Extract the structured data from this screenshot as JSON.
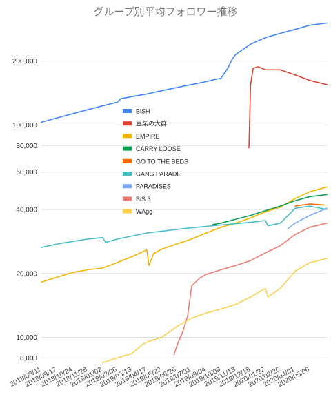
{
  "chart_data": {
    "type": "line",
    "title": "グループ別平均フォロワー推移",
    "xlabel": "",
    "ylabel": "",
    "y_scale": "log",
    "ylim": [
      7500,
      310000
    ],
    "y_ticks": [
      8000,
      10000,
      20000,
      40000,
      60000,
      80000,
      100000,
      200000
    ],
    "y_tick_labels": [
      "8,000",
      "10,000",
      "20,000",
      "40,000",
      "60,000",
      "80,000",
      "100,000",
      "200,000"
    ],
    "x_range": [
      "2018-08-11",
      "2020-06-15"
    ],
    "x_ticks": [
      "2018-08-11",
      "2018-09-17",
      "2018-10-24",
      "2018-11-28",
      "2019-01-02",
      "2019-02-06",
      "2019-03-13",
      "2019-04-17",
      "2019-05-22",
      "2019-06-26",
      "2019-07-31",
      "2019-09-04",
      "2019-10-09",
      "2019-11-13",
      "2019-12-18",
      "2020-01-22",
      "2020-02-26",
      "2020-04-01",
      "2020-05-06"
    ],
    "x_tick_labels": [
      "2018/08/11",
      "2018/09/17",
      "2018/10/24",
      "2018/11/28",
      "2019/01/02",
      "2019/02/06",
      "2019/03/13",
      "2019/04/17",
      "2019/05/22",
      "2019/06/26",
      "2019/07/31",
      "2019/09/04",
      "2019/10/09",
      "2019/11/13",
      "2019/12/18",
      "2020/01/22",
      "2020/02/26",
      "2020/04/01",
      "2020/05/06"
    ],
    "grid": true,
    "legend_position": "center",
    "series": [
      {
        "name": "BiSH",
        "color": "#4285f4",
        "points": [
          [
            "2018-08-11",
            103000
          ],
          [
            "2018-09-17",
            108000
          ],
          [
            "2018-10-24",
            113000
          ],
          [
            "2018-11-28",
            118000
          ],
          [
            "2019-01-02",
            123000
          ],
          [
            "2019-02-06",
            128000
          ],
          [
            "2019-02-15",
            133000
          ],
          [
            "2019-03-13",
            136000
          ],
          [
            "2019-04-17",
            140000
          ],
          [
            "2019-05-22",
            145000
          ],
          [
            "2019-06-26",
            150000
          ],
          [
            "2019-07-31",
            155000
          ],
          [
            "2019-09-04",
            160000
          ],
          [
            "2019-09-20",
            163000
          ],
          [
            "2019-10-09",
            166000
          ],
          [
            "2019-10-25",
            185000
          ],
          [
            "2019-11-05",
            205000
          ],
          [
            "2019-11-13",
            215000
          ],
          [
            "2019-12-18",
            240000
          ],
          [
            "2020-01-22",
            258000
          ],
          [
            "2020-02-26",
            270000
          ],
          [
            "2020-04-01",
            282000
          ],
          [
            "2020-05-06",
            295000
          ],
          [
            "2020-06-15",
            302000
          ]
        ]
      },
      {
        "name": "豆柴の大群",
        "color": "#db4437",
        "points": [
          [
            "2019-12-14",
            78000
          ],
          [
            "2019-12-18",
            155000
          ],
          [
            "2019-12-24",
            185000
          ],
          [
            "2020-01-05",
            188000
          ],
          [
            "2020-01-22",
            182000
          ],
          [
            "2020-02-26",
            182000
          ],
          [
            "2020-04-01",
            172000
          ],
          [
            "2020-05-06",
            162000
          ],
          [
            "2020-06-15",
            155000
          ]
        ]
      },
      {
        "name": "EMPIRE",
        "color": "#f4b400",
        "points": [
          [
            "2018-08-11",
            18200
          ],
          [
            "2018-09-17",
            19200
          ],
          [
            "2018-10-24",
            20200
          ],
          [
            "2018-11-28",
            20800
          ],
          [
            "2019-01-02",
            21200
          ],
          [
            "2019-02-06",
            22500
          ],
          [
            "2019-03-13",
            24000
          ],
          [
            "2019-04-17",
            25800
          ],
          [
            "2019-04-22",
            21800
          ],
          [
            "2019-05-03",
            24800
          ],
          [
            "2019-05-22",
            26000
          ],
          [
            "2019-06-26",
            27500
          ],
          [
            "2019-07-31",
            29000
          ],
          [
            "2019-09-04",
            31000
          ],
          [
            "2019-10-09",
            33000
          ],
          [
            "2019-11-13",
            34500
          ],
          [
            "2019-12-18",
            36500
          ],
          [
            "2020-01-22",
            39000
          ],
          [
            "2020-02-26",
            41000
          ],
          [
            "2020-04-01",
            45000
          ],
          [
            "2020-05-06",
            48500
          ],
          [
            "2020-06-15",
            51000
          ]
        ]
      },
      {
        "name": "CARRY LOOSE",
        "color": "#0f9d58",
        "points": [
          [
            "2019-09-20",
            34000
          ],
          [
            "2019-10-09",
            34500
          ],
          [
            "2019-11-13",
            36000
          ],
          [
            "2019-12-18",
            37500
          ],
          [
            "2020-01-22",
            39500
          ],
          [
            "2020-02-26",
            41500
          ],
          [
            "2020-04-01",
            44000
          ],
          [
            "2020-05-06",
            46000
          ],
          [
            "2020-06-15",
            47000
          ]
        ]
      },
      {
        "name": "GO TO THE BEDS",
        "color": "#ff6d00",
        "points": [
          [
            "2020-04-01",
            41500
          ],
          [
            "2020-05-06",
            42500
          ],
          [
            "2020-06-10",
            42000
          ]
        ]
      },
      {
        "name": "GANG PARADE",
        "color": "#46bdc6",
        "points": [
          [
            "2018-08-11",
            26500
          ],
          [
            "2018-09-17",
            27500
          ],
          [
            "2018-10-24",
            28300
          ],
          [
            "2018-11-28",
            29000
          ],
          [
            "2019-01-02",
            29500
          ],
          [
            "2019-01-10",
            28000
          ],
          [
            "2019-02-06",
            29000
          ],
          [
            "2019-03-13",
            30000
          ],
          [
            "2019-04-17",
            31000
          ],
          [
            "2019-05-22",
            31600
          ],
          [
            "2019-06-26",
            32200
          ],
          [
            "2019-07-31",
            32800
          ],
          [
            "2019-09-04",
            33300
          ],
          [
            "2019-10-09",
            33800
          ],
          [
            "2019-11-13",
            34300
          ],
          [
            "2019-12-18",
            34800
          ],
          [
            "2020-01-22",
            35500
          ],
          [
            "2020-01-28",
            33500
          ],
          [
            "2020-02-26",
            34500
          ],
          [
            "2020-04-01",
            40500
          ],
          [
            "2020-05-06",
            41500
          ],
          [
            "2020-06-15",
            40000
          ]
        ]
      },
      {
        "name": "PARADISES",
        "color": "#7baaf7",
        "points": [
          [
            "2020-03-15",
            32500
          ],
          [
            "2020-04-01",
            34500
          ],
          [
            "2020-05-06",
            37500
          ],
          [
            "2020-06-15",
            40500
          ]
        ]
      },
      {
        "name": "BiS 3",
        "color": "#f07b72",
        "points": [
          [
            "2019-06-20",
            8300
          ],
          [
            "2019-06-30",
            9500
          ],
          [
            "2019-07-10",
            10500
          ],
          [
            "2019-07-22",
            12500
          ],
          [
            "2019-08-01",
            17500
          ],
          [
            "2019-08-20",
            19000
          ],
          [
            "2019-09-04",
            19800
          ],
          [
            "2019-10-09",
            20800
          ],
          [
            "2019-11-13",
            21800
          ],
          [
            "2019-12-18",
            23000
          ],
          [
            "2020-01-22",
            25000
          ],
          [
            "2020-02-26",
            27000
          ],
          [
            "2020-04-01",
            30500
          ],
          [
            "2020-05-06",
            33000
          ],
          [
            "2020-06-15",
            34500
          ]
        ]
      },
      {
        "name": "WAgg",
        "color": "#fcd04f",
        "points": [
          [
            "2019-01-02",
            7600
          ],
          [
            "2019-02-06",
            8000
          ],
          [
            "2019-03-13",
            8400
          ],
          [
            "2019-04-05",
            9200
          ],
          [
            "2019-04-17",
            9500
          ],
          [
            "2019-05-22",
            10000
          ],
          [
            "2019-06-26",
            11200
          ],
          [
            "2019-07-31",
            12300
          ],
          [
            "2019-09-04",
            13000
          ],
          [
            "2019-10-09",
            13600
          ],
          [
            "2019-11-13",
            14300
          ],
          [
            "2019-12-18",
            15500
          ],
          [
            "2020-01-22",
            17000
          ],
          [
            "2020-01-28",
            15500
          ],
          [
            "2020-02-26",
            17000
          ],
          [
            "2020-04-01",
            20500
          ],
          [
            "2020-05-06",
            22500
          ],
          [
            "2020-06-15",
            23500
          ]
        ]
      }
    ]
  }
}
